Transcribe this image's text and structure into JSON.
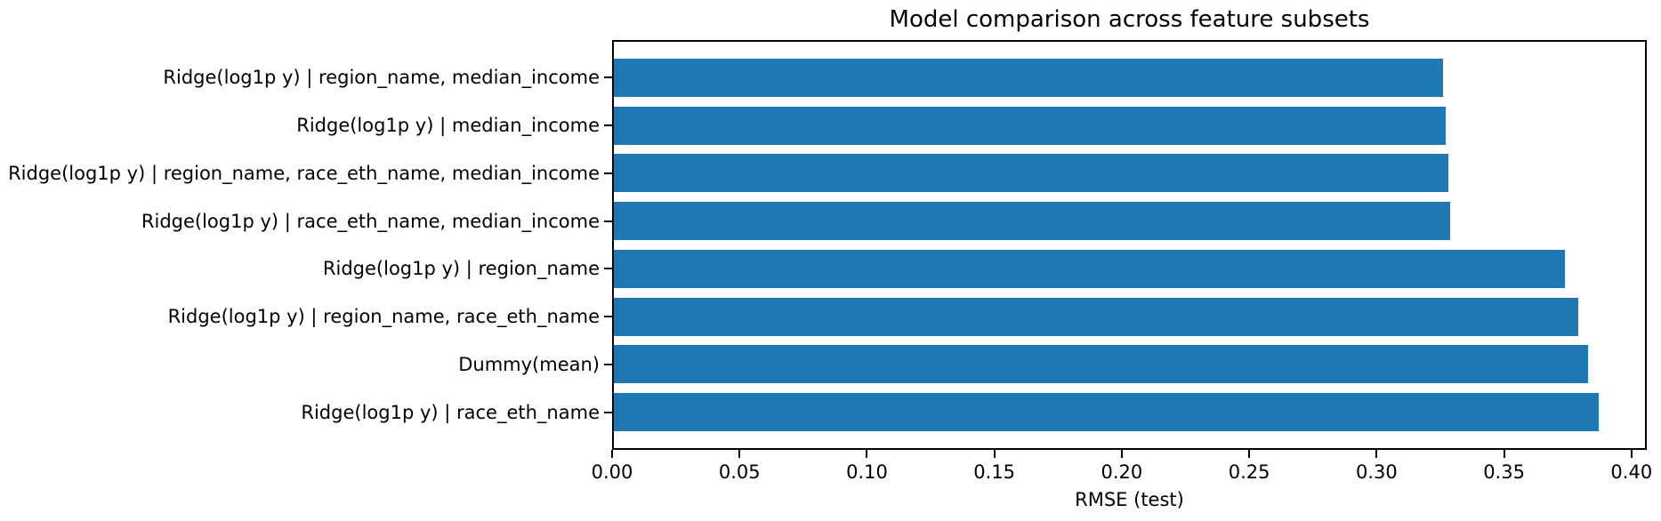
{
  "chart_data": {
    "type": "bar",
    "orientation": "horizontal",
    "title": "Model comparison across feature subsets",
    "xlabel": "RMSE (test)",
    "ylabel": "",
    "categories": [
      "Ridge(log1p y) | region_name, median_income",
      "Ridge(log1p y) | median_income",
      "Ridge(log1p y) | region_name, race_eth_name, median_income",
      "Ridge(log1p y) | race_eth_name, median_income",
      "Ridge(log1p y) | region_name",
      "Ridge(log1p y) | region_name, race_eth_name",
      "Dummy(mean)",
      "Ridge(log1p y) | race_eth_name"
    ],
    "values": [
      0.326,
      0.327,
      0.328,
      0.329,
      0.374,
      0.379,
      0.383,
      0.387
    ],
    "xlim": [
      0,
      0.406
    ],
    "xtick_values": [
      0.0,
      0.05,
      0.1,
      0.15,
      0.2,
      0.25,
      0.3,
      0.35,
      0.4
    ],
    "xtick_labels": [
      "0.00",
      "0.05",
      "0.10",
      "0.15",
      "0.20",
      "0.25",
      "0.30",
      "0.35",
      "0.40"
    ],
    "grid": false,
    "legend": "none",
    "bar_color": "#1f77b4",
    "axis_color": "#000000",
    "text_color": "#000000",
    "background_color": "#ffffff"
  }
}
